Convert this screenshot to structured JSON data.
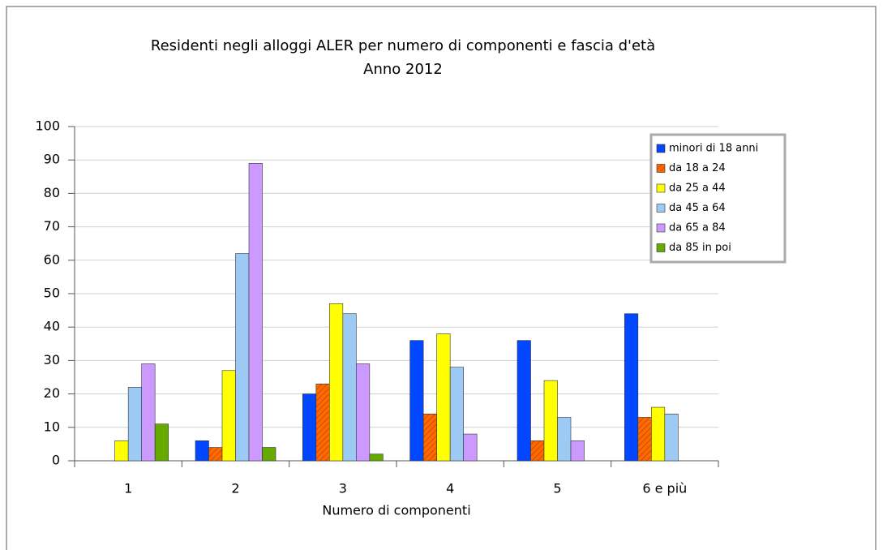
{
  "chart_data": {
    "type": "bar",
    "title": "Residenti negli alloggi ALER per numero di componenti e fascia d'età",
    "subtitle": "Anno 2012",
    "x_label": "Numero di componenti",
    "categories": [
      "1",
      "2",
      "3",
      "4",
      "5",
      "6 e più"
    ],
    "series": [
      {
        "name": "minori di 18 anni",
        "color": "#0047ff",
        "values": [
          0,
          6,
          20,
          36,
          36,
          44
        ]
      },
      {
        "name": "da 18 a 24",
        "color": "#ff6a00",
        "pattern": "hatch",
        "values": [
          0,
          4,
          23,
          14,
          6,
          13
        ]
      },
      {
        "name": "da 25 a 44",
        "color": "#ffff00",
        "values": [
          6,
          27,
          47,
          38,
          24,
          16
        ]
      },
      {
        "name": "da 45 a 64",
        "color": "#9ccaf5",
        "values": [
          22,
          62,
          44,
          28,
          13,
          14
        ]
      },
      {
        "name": "da 65 a 84",
        "color": "#cc99ff",
        "values": [
          29,
          89,
          29,
          8,
          6,
          0
        ]
      },
      {
        "name": "da 85 in poi",
        "color": "#66aa00",
        "values": [
          11,
          4,
          2,
          0,
          0,
          0
        ]
      }
    ],
    "ylim": [
      0,
      100
    ],
    "yticks": [
      0,
      10,
      20,
      30,
      40,
      50,
      60,
      70,
      80,
      90,
      100
    ],
    "grid": true,
    "legend": "top-right"
  }
}
